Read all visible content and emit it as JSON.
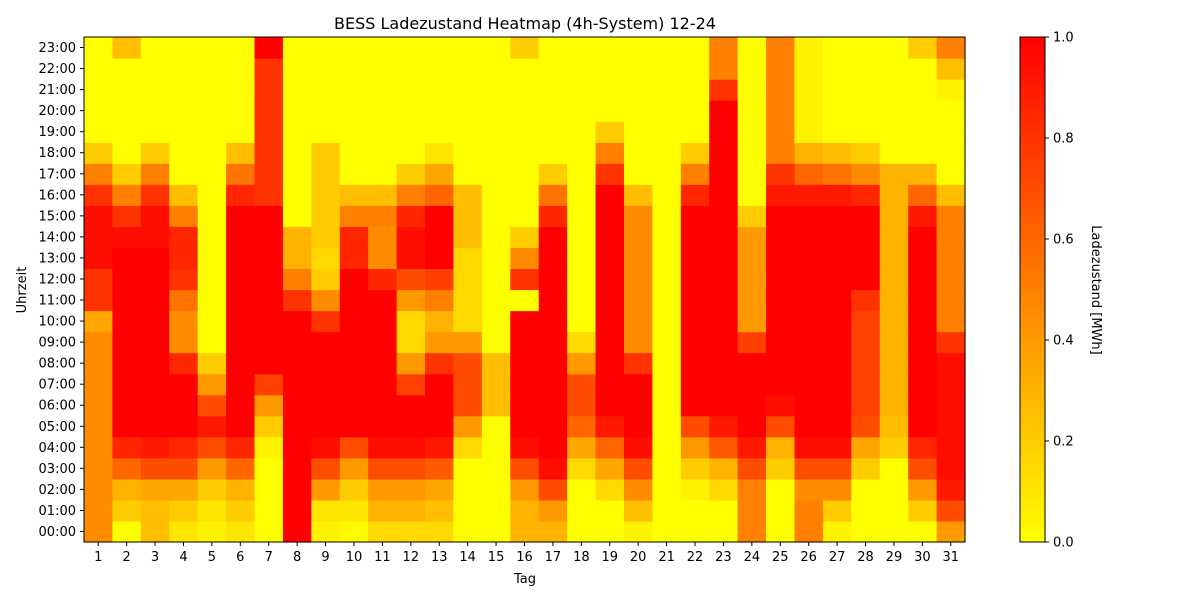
{
  "chart_data": {
    "type": "heatmap",
    "title": "BESS Ladezustand Heatmap (4h-System) 12-24",
    "xlabel": "Tag",
    "ylabel": "Uhrzeit",
    "colorbar_label": "Ladezustand [MWh]",
    "x": [
      "1",
      "2",
      "3",
      "4",
      "5",
      "6",
      "7",
      "8",
      "9",
      "10",
      "11",
      "12",
      "13",
      "14",
      "15",
      "16",
      "17",
      "18",
      "19",
      "20",
      "21",
      "22",
      "23",
      "24",
      "25",
      "26",
      "27",
      "28",
      "29",
      "30",
      "31"
    ],
    "y": [
      "00:00",
      "01:00",
      "02:00",
      "03:00",
      "04:00",
      "05:00",
      "06:00",
      "07:00",
      "08:00",
      "09:00",
      "10:00",
      "11:00",
      "12:00",
      "13:00",
      "14:00",
      "15:00",
      "16:00",
      "17:00",
      "18:00",
      "19:00",
      "20:00",
      "21:00",
      "22:00",
      "23:00"
    ],
    "colorbar_ticks": [
      "0.0",
      "0.2",
      "0.4",
      "0.6",
      "0.8",
      "1.0"
    ],
    "vmin": 0.0,
    "vmax": 1.0,
    "colormap": {
      "low": "#ffff00",
      "high": "#ff0000",
      "name": "autumn_r"
    },
    "values": [
      [
        0.45,
        0.0,
        0.25,
        0.1,
        0.05,
        0.1,
        0.0,
        1.0,
        0.05,
        0.02,
        0.15,
        0.15,
        0.15,
        0.0,
        0.0,
        0.3,
        0.3,
        0.0,
        0.0,
        0.05,
        0.0,
        0.0,
        0.0,
        0.5,
        0.0,
        0.5,
        0.05,
        0.0,
        0.0,
        0.0,
        0.4
      ],
      [
        0.45,
        0.2,
        0.25,
        0.2,
        0.1,
        0.2,
        0.0,
        1.0,
        0.1,
        0.1,
        0.3,
        0.3,
        0.25,
        0.0,
        0.0,
        0.3,
        0.4,
        0.0,
        0.0,
        0.25,
        0.0,
        0.0,
        0.0,
        0.5,
        0.0,
        0.5,
        0.2,
        0.0,
        0.0,
        0.2,
        0.7
      ],
      [
        0.45,
        0.3,
        0.35,
        0.35,
        0.2,
        0.3,
        0.0,
        1.0,
        0.4,
        0.2,
        0.4,
        0.4,
        0.35,
        0.0,
        0.0,
        0.4,
        0.7,
        0.0,
        0.15,
        0.45,
        0.0,
        0.05,
        0.15,
        0.5,
        0.0,
        0.45,
        0.45,
        0.0,
        0.0,
        0.4,
        0.9
      ],
      [
        0.45,
        0.6,
        0.7,
        0.7,
        0.4,
        0.6,
        0.0,
        1.0,
        0.7,
        0.4,
        0.7,
        0.7,
        0.65,
        0.0,
        0.0,
        0.7,
        0.95,
        0.15,
        0.35,
        0.7,
        0.0,
        0.2,
        0.3,
        0.7,
        0.2,
        0.7,
        0.7,
        0.2,
        0.0,
        0.7,
        0.95
      ],
      [
        0.45,
        0.85,
        0.9,
        0.85,
        0.7,
        0.85,
        0.05,
        1.0,
        0.95,
        0.7,
        0.95,
        0.95,
        0.9,
        0.15,
        0.0,
        0.95,
        1.0,
        0.35,
        0.6,
        0.95,
        0.0,
        0.4,
        0.65,
        0.9,
        0.3,
        0.95,
        0.95,
        0.35,
        0.2,
        0.85,
        0.95
      ],
      [
        0.45,
        1.0,
        1.0,
        1.0,
        0.9,
        1.0,
        0.2,
        1.0,
        1.0,
        1.0,
        1.0,
        1.0,
        1.0,
        0.4,
        0.0,
        1.0,
        1.0,
        0.6,
        0.9,
        1.0,
        0.0,
        0.7,
        0.9,
        1.0,
        0.7,
        1.0,
        1.0,
        0.7,
        0.25,
        1.0,
        0.95
      ],
      [
        0.45,
        1.0,
        1.0,
        1.0,
        0.7,
        1.0,
        0.4,
        1.0,
        1.0,
        1.0,
        1.0,
        1.0,
        1.0,
        0.7,
        0.25,
        1.0,
        1.0,
        0.7,
        1.0,
        1.0,
        0.0,
        1.0,
        1.0,
        1.0,
        0.95,
        1.0,
        1.0,
        0.75,
        0.3,
        1.0,
        0.95
      ],
      [
        0.45,
        1.0,
        1.0,
        1.0,
        0.4,
        1.0,
        0.75,
        1.0,
        1.0,
        1.0,
        1.0,
        0.75,
        1.0,
        0.7,
        0.25,
        1.0,
        1.0,
        0.7,
        1.0,
        1.0,
        0.0,
        1.0,
        1.0,
        1.0,
        1.0,
        1.0,
        1.0,
        0.75,
        0.3,
        1.0,
        0.95
      ],
      [
        0.45,
        1.0,
        1.0,
        0.85,
        0.2,
        1.0,
        1.0,
        1.0,
        1.0,
        1.0,
        1.0,
        0.4,
        0.8,
        0.7,
        0.25,
        1.0,
        1.0,
        0.4,
        1.0,
        0.8,
        0.0,
        1.0,
        1.0,
        1.0,
        1.0,
        1.0,
        1.0,
        0.75,
        0.3,
        1.0,
        0.95
      ],
      [
        0.45,
        1.0,
        1.0,
        0.45,
        0.0,
        1.0,
        1.0,
        1.0,
        1.0,
        1.0,
        1.0,
        0.15,
        0.4,
        0.4,
        0.0,
        1.0,
        1.0,
        0.15,
        1.0,
        0.45,
        0.0,
        1.0,
        1.0,
        0.75,
        1.0,
        1.0,
        1.0,
        0.75,
        0.3,
        1.0,
        0.8
      ],
      [
        0.35,
        1.0,
        1.0,
        0.45,
        0.0,
        1.0,
        1.0,
        1.0,
        0.8,
        1.0,
        1.0,
        0.15,
        0.3,
        0.15,
        0.0,
        1.0,
        1.0,
        0.0,
        1.0,
        0.45,
        0.0,
        1.0,
        1.0,
        0.4,
        1.0,
        1.0,
        1.0,
        0.75,
        0.3,
        1.0,
        0.5
      ],
      [
        0.8,
        1.0,
        1.0,
        0.55,
        0.0,
        1.0,
        1.0,
        0.8,
        0.45,
        1.0,
        1.0,
        0.4,
        0.5,
        0.15,
        0.0,
        0.0,
        1.0,
        0.0,
        1.0,
        0.45,
        0.0,
        1.0,
        1.0,
        0.4,
        1.0,
        1.0,
        1.0,
        0.8,
        0.3,
        1.0,
        0.5
      ],
      [
        0.8,
        1.0,
        1.0,
        0.8,
        0.0,
        1.0,
        1.0,
        0.5,
        0.2,
        1.0,
        0.85,
        0.7,
        0.75,
        0.15,
        0.0,
        0.8,
        1.0,
        0.0,
        1.0,
        0.45,
        0.0,
        1.0,
        1.0,
        0.4,
        1.0,
        1.0,
        1.0,
        1.0,
        0.3,
        1.0,
        0.5
      ],
      [
        0.95,
        1.0,
        1.0,
        0.85,
        0.0,
        1.0,
        1.0,
        0.3,
        0.15,
        0.85,
        0.45,
        0.95,
        1.0,
        0.15,
        0.0,
        0.45,
        1.0,
        0.0,
        1.0,
        0.45,
        0.0,
        1.0,
        1.0,
        0.4,
        1.0,
        1.0,
        1.0,
        1.0,
        0.3,
        1.0,
        0.5
      ],
      [
        0.95,
        0.95,
        0.95,
        0.85,
        0.0,
        1.0,
        1.0,
        0.3,
        0.2,
        0.85,
        0.45,
        0.95,
        1.0,
        0.25,
        0.0,
        0.2,
        1.0,
        0.0,
        1.0,
        0.45,
        0.0,
        1.0,
        1.0,
        0.4,
        1.0,
        1.0,
        1.0,
        1.0,
        0.3,
        1.0,
        0.5
      ],
      [
        0.95,
        0.8,
        0.95,
        0.5,
        0.0,
        1.0,
        1.0,
        0.0,
        0.2,
        0.5,
        0.5,
        0.85,
        1.0,
        0.25,
        0.0,
        0.0,
        0.85,
        0.0,
        1.0,
        0.45,
        0.0,
        1.0,
        1.0,
        0.2,
        1.0,
        1.0,
        1.0,
        1.0,
        0.3,
        0.9,
        0.5
      ],
      [
        0.8,
        0.5,
        0.8,
        0.25,
        0.0,
        0.85,
        0.8,
        0.0,
        0.2,
        0.25,
        0.25,
        0.5,
        0.6,
        0.25,
        0.0,
        0.0,
        0.55,
        0.0,
        1.0,
        0.25,
        0.0,
        0.85,
        1.0,
        0.0,
        0.9,
        0.9,
        0.9,
        0.85,
        0.3,
        0.6,
        0.25
      ],
      [
        0.5,
        0.2,
        0.5,
        0.0,
        0.0,
        0.55,
        0.8,
        0.0,
        0.2,
        0.0,
        0.0,
        0.2,
        0.35,
        0.0,
        0.0,
        0.0,
        0.2,
        0.0,
        0.8,
        0.0,
        0.0,
        0.5,
        1.0,
        0.0,
        0.8,
        0.6,
        0.55,
        0.45,
        0.3,
        0.3,
        0.0
      ],
      [
        0.2,
        0.0,
        0.2,
        0.0,
        0.0,
        0.25,
        0.8,
        0.0,
        0.2,
        0.0,
        0.0,
        0.0,
        0.1,
        0.0,
        0.0,
        0.0,
        0.0,
        0.0,
        0.5,
        0.0,
        0.0,
        0.2,
        1.0,
        0.0,
        0.5,
        0.3,
        0.25,
        0.2,
        0.0,
        0.0,
        0.0
      ],
      [
        0.0,
        0.0,
        0.0,
        0.0,
        0.0,
        0.0,
        0.8,
        0.0,
        0.0,
        0.0,
        0.0,
        0.0,
        0.0,
        0.0,
        0.0,
        0.0,
        0.0,
        0.0,
        0.2,
        0.0,
        0.0,
        0.0,
        1.0,
        0.0,
        0.5,
        0.05,
        0.0,
        0.0,
        0.0,
        0.0,
        0.0
      ],
      [
        0.0,
        0.0,
        0.0,
        0.0,
        0.0,
        0.0,
        0.8,
        0.0,
        0.0,
        0.0,
        0.0,
        0.0,
        0.0,
        0.0,
        0.0,
        0.0,
        0.0,
        0.0,
        0.0,
        0.0,
        0.0,
        0.0,
        1.0,
        0.0,
        0.5,
        0.05,
        0.0,
        0.0,
        0.0,
        0.0,
        0.0
      ],
      [
        0.0,
        0.0,
        0.0,
        0.0,
        0.0,
        0.0,
        0.8,
        0.0,
        0.0,
        0.0,
        0.0,
        0.0,
        0.0,
        0.0,
        0.0,
        0.0,
        0.0,
        0.0,
        0.0,
        0.0,
        0.0,
        0.0,
        0.8,
        0.0,
        0.5,
        0.05,
        0.0,
        0.0,
        0.0,
        0.0,
        0.05
      ],
      [
        0.0,
        0.0,
        0.0,
        0.0,
        0.0,
        0.0,
        0.8,
        0.0,
        0.0,
        0.0,
        0.0,
        0.0,
        0.0,
        0.0,
        0.0,
        0.0,
        0.0,
        0.0,
        0.0,
        0.0,
        0.0,
        0.0,
        0.5,
        0.0,
        0.5,
        0.05,
        0.0,
        0.0,
        0.0,
        0.0,
        0.25
      ],
      [
        0.0,
        0.25,
        0.0,
        0.0,
        0.0,
        0.0,
        1.0,
        0.0,
        0.0,
        0.0,
        0.0,
        0.0,
        0.0,
        0.0,
        0.0,
        0.2,
        0.0,
        0.0,
        0.0,
        0.0,
        0.0,
        0.0,
        0.5,
        0.0,
        0.5,
        0.05,
        0.0,
        0.0,
        0.0,
        0.2,
        0.5
      ]
    ]
  }
}
